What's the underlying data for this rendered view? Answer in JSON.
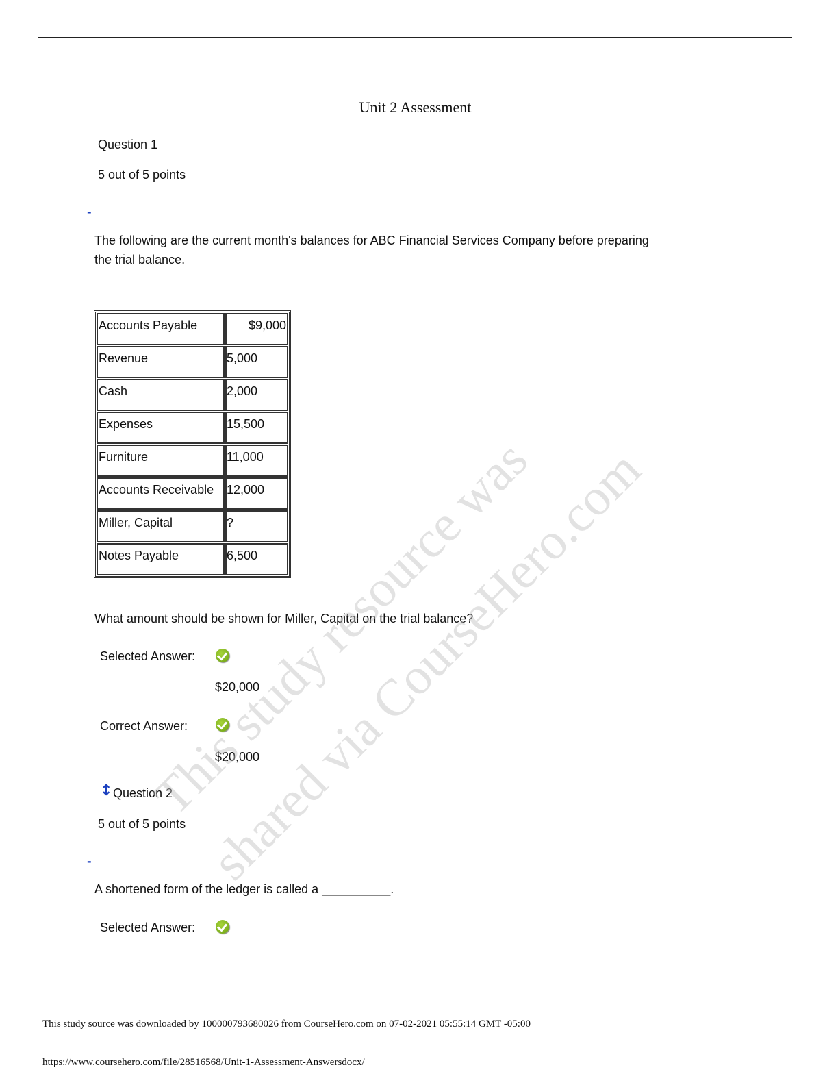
{
  "title": "Unit 2 Assessment",
  "q1": {
    "label": "Question 1",
    "points": "5 out of 5 points",
    "marker": "-",
    "text1": "The following are the current month's balances for ABC Financial Services Company before preparing",
    "text2": "the trial balance.",
    "table": [
      [
        "Accounts Payable",
        "$9,000"
      ],
      [
        "Revenue",
        "5,000"
      ],
      [
        "Cash",
        "2,000"
      ],
      [
        "Expenses",
        "15,500"
      ],
      [
        "Furniture",
        "11,000"
      ],
      [
        "Accounts Receivable",
        "12,000"
      ],
      [
        "Miller, Capital",
        "?"
      ],
      [
        "Notes Payable",
        "6,500"
      ]
    ],
    "prompt": "What amount should be shown for Miller, Capital on the trial balance?",
    "selected_label": "Selected Answer:",
    "selected_value": "$20,000",
    "correct_label": "Correct Answer:",
    "correct_value": "$20,000"
  },
  "q2": {
    "label": "Question 2",
    "points": "5 out of 5 points",
    "marker": "-",
    "arrow_icon": "↕",
    "prompt": "A shortened form of the ledger is called a __________.",
    "selected_label": "Selected Answer:"
  },
  "watermark": {
    "line1": "This study resource was",
    "line2": "shared via CourseHero.com"
  },
  "footer": {
    "line1": "This study source was downloaded by 100000793680026 from CourseHero.com on 07-02-2021 05:55:14 GMT -05:00",
    "line2": "https://www.coursehero.com/file/28516568/Unit-1-Assessment-Answersdocx/"
  },
  "colors": {
    "check": "#7fb51e",
    "link": "#1a3fbf"
  }
}
